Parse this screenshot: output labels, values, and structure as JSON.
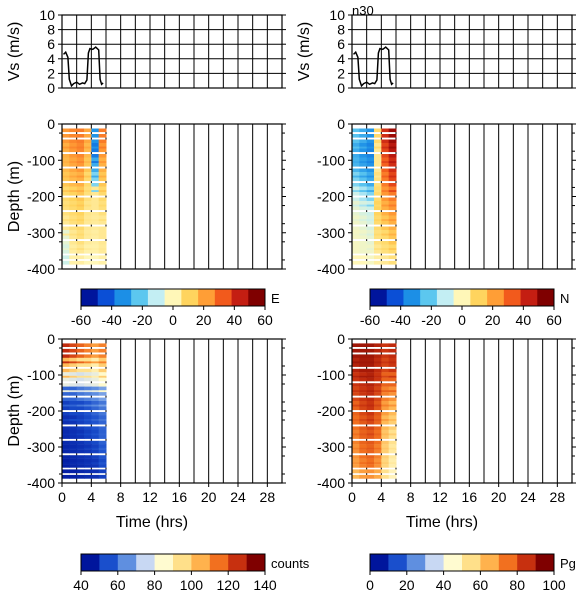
{
  "figure": {
    "station_label": "n30",
    "colors": {
      "velocity_line": "#000000",
      "grid": "#000000",
      "background": "#ffffff"
    }
  },
  "colorbars": [
    {
      "label": "E",
      "ticks": [
        "-60",
        "-40",
        "-20",
        "0",
        "20",
        "40",
        "60"
      ],
      "colors": [
        "#00159c",
        "#0b4fd6",
        "#1c8fe6",
        "#5cc7ef",
        "#c3eef3",
        "#fff7b8",
        "#ffd45e",
        "#ff9e36",
        "#f25a1c",
        "#c41e12",
        "#7f0000"
      ]
    },
    {
      "label": "N",
      "ticks": [
        "-60",
        "-40",
        "-20",
        "0",
        "20",
        "40",
        "60"
      ],
      "colors": [
        "#00159c",
        "#0b4fd6",
        "#1c8fe6",
        "#5cc7ef",
        "#c3eef3",
        "#fff7b8",
        "#ffd45e",
        "#ff9e36",
        "#f25a1c",
        "#c41e12",
        "#7f0000"
      ]
    },
    {
      "label": "counts",
      "ticks": [
        "40",
        "60",
        "80",
        "100",
        "120",
        "140"
      ],
      "colors": [
        "#00159c",
        "#1a4fcc",
        "#5f8fe0",
        "#c8d8f3",
        "#fffbd0",
        "#ffe08a",
        "#ffb24d",
        "#f2701f",
        "#c7300f",
        "#7f0000"
      ]
    },
    {
      "label": "Pg",
      "ticks": [
        "0",
        "20",
        "40",
        "60",
        "80",
        "100"
      ],
      "colors": [
        "#00159c",
        "#1a4fcc",
        "#5f8fe0",
        "#c8d8f3",
        "#fffbd0",
        "#ffe08a",
        "#ffb24d",
        "#f2701f",
        "#c7300f",
        "#7f0000"
      ]
    }
  ],
  "chart_data": [
    {
      "type": "line",
      "panel": "vs-left",
      "ylabel": "Vs (m/s)",
      "ylim": [
        0,
        10
      ],
      "yticks": [
        "0",
        "2",
        "4",
        "6",
        "8",
        "10"
      ],
      "xlim": [
        0,
        30
      ],
      "grid": true,
      "series": [
        {
          "x": [
            0.2,
            0.5,
            0.8,
            1.0,
            1.3,
            1.6,
            2.0,
            2.4,
            2.8,
            3.1,
            3.4,
            3.6,
            3.8,
            4.2,
            4.6,
            5.0,
            5.2,
            5.4,
            5.6
          ],
          "values": [
            4.6,
            4.9,
            4.2,
            1.2,
            0.3,
            0.6,
            0.8,
            0.5,
            0.7,
            0.6,
            1.1,
            4.8,
            5.4,
            5.3,
            5.6,
            5.2,
            1.2,
            0.5,
            0.7
          ]
        }
      ]
    },
    {
      "type": "line",
      "panel": "vs-right",
      "title": "n30",
      "ylabel": "Vs (m/s)",
      "ylim": [
        0,
        10
      ],
      "yticks": [
        "0",
        "2",
        "4",
        "6",
        "8",
        "10"
      ],
      "xlim": [
        0,
        30
      ],
      "grid": true,
      "series": [
        {
          "x": [
            0.2,
            0.5,
            0.8,
            1.0,
            1.3,
            1.6,
            2.0,
            2.4,
            2.8,
            3.1,
            3.4,
            3.6,
            3.8,
            4.2,
            4.6,
            5.0,
            5.2,
            5.4,
            5.6
          ],
          "values": [
            4.6,
            4.9,
            4.2,
            1.2,
            0.3,
            0.6,
            0.8,
            0.5,
            0.7,
            0.6,
            1.1,
            4.8,
            5.4,
            5.3,
            5.6,
            5.2,
            1.2,
            0.5,
            0.7
          ]
        }
      ]
    },
    {
      "type": "heatmap",
      "panel": "E",
      "ylabel": "Depth (m)",
      "yticks": [
        "0",
        "-100",
        "-200",
        "-300",
        "-400"
      ],
      "ylim": [
        -400,
        0
      ],
      "xlim": [
        0,
        30
      ],
      "grid": true,
      "colorbar_label": "E",
      "value_range": [
        -60,
        60
      ],
      "x": [
        0.5,
        1.5,
        2.5,
        3.5,
        4.5,
        5.5
      ],
      "y": [
        -40,
        -80,
        -120,
        -160,
        -200,
        -240,
        -280,
        -320,
        -360,
        -390
      ],
      "values": [
        [
          25,
          28,
          30,
          22,
          -35,
          30
        ],
        [
          20,
          25,
          28,
          18,
          -40,
          25
        ],
        [
          18,
          22,
          25,
          15,
          -30,
          20
        ],
        [
          15,
          18,
          20,
          10,
          -20,
          15
        ],
        [
          10,
          12,
          15,
          8,
          5,
          10
        ],
        [
          8,
          10,
          12,
          6,
          5,
          8
        ],
        [
          5,
          8,
          10,
          5,
          4,
          5
        ],
        [
          -5,
          5,
          8,
          4,
          3,
          5
        ],
        [
          -8,
          3,
          5,
          2,
          2,
          4
        ],
        [
          -10,
          2,
          3,
          0,
          0,
          2
        ]
      ]
    },
    {
      "type": "heatmap",
      "panel": "N",
      "ylabel": "",
      "yticks": [
        "0",
        "-100",
        "-200",
        "-300",
        "-400"
      ],
      "ylim": [
        -400,
        0
      ],
      "xlim": [
        0,
        30
      ],
      "grid": true,
      "colorbar_label": "N",
      "value_range": [
        -60,
        60
      ],
      "x": [
        0.5,
        1.5,
        2.5,
        3.5,
        4.5,
        5.5
      ],
      "y": [
        -40,
        -80,
        -120,
        -160,
        -200,
        -240,
        -280,
        -320,
        -360,
        -390
      ],
      "values": [
        [
          -25,
          -30,
          -35,
          10,
          45,
          55
        ],
        [
          -30,
          -35,
          -38,
          5,
          40,
          50
        ],
        [
          -28,
          -32,
          -35,
          5,
          35,
          45
        ],
        [
          -20,
          -25,
          -30,
          8,
          30,
          40
        ],
        [
          -10,
          -15,
          -20,
          10,
          25,
          30
        ],
        [
          -5,
          -8,
          -10,
          12,
          20,
          25
        ],
        [
          -3,
          -5,
          -8,
          10,
          15,
          20
        ],
        [
          -2,
          -3,
          -5,
          8,
          10,
          15
        ],
        [
          -2,
          -3,
          -3,
          5,
          8,
          10
        ],
        [
          0,
          0,
          -2,
          3,
          5,
          8
        ]
      ]
    },
    {
      "type": "heatmap",
      "panel": "counts",
      "xlabel": "Time (hrs)",
      "ylabel": "Depth (m)",
      "xticks": [
        "0",
        "4",
        "8",
        "12",
        "16",
        "20",
        "24",
        "28"
      ],
      "yticks": [
        "0",
        "-100",
        "-200",
        "-300",
        "-400"
      ],
      "ylim": [
        -400,
        0
      ],
      "xlim": [
        0,
        30
      ],
      "grid": true,
      "colorbar_label": "counts",
      "value_range": [
        40,
        140
      ],
      "x": [
        0.5,
        1.5,
        2.5,
        3.5,
        4.5,
        5.5
      ],
      "y": [
        -40,
        -80,
        -120,
        -160,
        -200,
        -240,
        -280,
        -320,
        -360,
        -390
      ],
      "values": [
        [
          130,
          125,
          120,
          115,
          110,
          115
        ],
        [
          105,
          100,
          95,
          95,
          90,
          100
        ],
        [
          80,
          78,
          76,
          78,
          80,
          85
        ],
        [
          55,
          55,
          58,
          60,
          62,
          65
        ],
        [
          48,
          50,
          50,
          52,
          55,
          58
        ],
        [
          45,
          46,
          48,
          50,
          52,
          55
        ],
        [
          44,
          45,
          46,
          48,
          50,
          54
        ],
        [
          43,
          44,
          45,
          46,
          48,
          52
        ],
        [
          42,
          43,
          44,
          45,
          46,
          50
        ],
        [
          42,
          42,
          43,
          44,
          45,
          48
        ]
      ]
    },
    {
      "type": "heatmap",
      "panel": "Pg",
      "xlabel": "Time (hrs)",
      "ylabel": "",
      "xticks": [
        "0",
        "4",
        "8",
        "12",
        "16",
        "20",
        "24",
        "28"
      ],
      "yticks": [
        "0",
        "-100",
        "-200",
        "-300",
        "-400"
      ],
      "ylim": [
        -400,
        0
      ],
      "xlim": [
        0,
        30
      ],
      "grid": true,
      "colorbar_label": "Pg",
      "value_range": [
        0,
        100
      ],
      "x": [
        0.5,
        1.5,
        2.5,
        3.5,
        4.5,
        5.5
      ],
      "y": [
        -40,
        -80,
        -120,
        -160,
        -200,
        -240,
        -280,
        -320,
        -360,
        -390
      ],
      "values": [
        [
          95,
          95,
          95,
          92,
          88,
          90
        ],
        [
          92,
          94,
          94,
          90,
          85,
          88
        ],
        [
          88,
          90,
          92,
          88,
          80,
          80
        ],
        [
          85,
          88,
          90,
          85,
          75,
          72
        ],
        [
          80,
          85,
          88,
          82,
          70,
          65
        ],
        [
          78,
          82,
          85,
          80,
          65,
          60
        ],
        [
          75,
          80,
          82,
          78,
          62,
          55
        ],
        [
          72,
          78,
          80,
          75,
          60,
          52
        ],
        [
          70,
          75,
          78,
          72,
          58,
          50
        ],
        [
          65,
          70,
          72,
          68,
          55,
          48
        ]
      ]
    }
  ]
}
